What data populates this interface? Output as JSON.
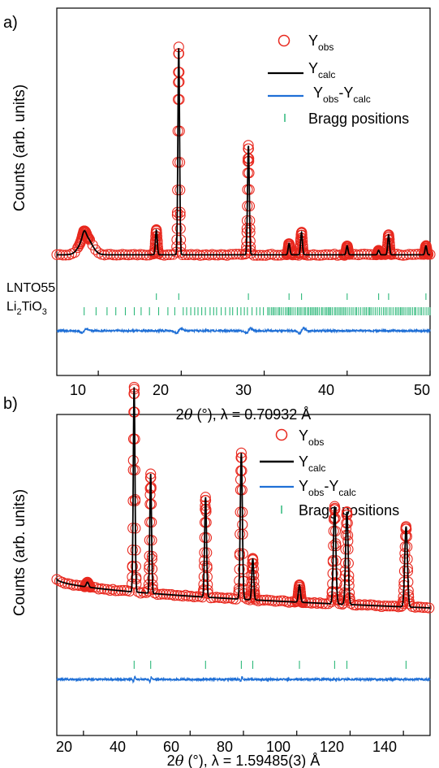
{
  "chart_data": [
    {
      "type": "scatter",
      "panel_label": "a)",
      "title": "",
      "xlabel_prefix": "2",
      "xlabel_theta": "θ",
      "xlabel_rest": " (°), λ = 0.70932 Å",
      "ylabel": "Counts (arb. units)",
      "xlim": [
        5,
        50
      ],
      "xticks": [
        "10",
        "20",
        "30",
        "40",
        "50"
      ],
      "legend_position": "top-right",
      "legend": {
        "obs_main": "Y",
        "obs_sub": "obs",
        "calc_main": "Y",
        "calc_sub": "calc",
        "diff_a": "Y",
        "diff_a_sub": "obs",
        "diff_dash": "-",
        "diff_b": "Y",
        "diff_b_sub": "calc",
        "bragg": "Bragg positions"
      },
      "phase_labels": [
        {
          "text": "LNTO55"
        },
        {
          "main": "Li",
          "sub1": "2",
          "mid": "TiO",
          "sub2": "3"
        }
      ],
      "background_level": 0.06,
      "low_angle_hump": {
        "x": 8.5,
        "height": 0.08,
        "width": 1.0
      },
      "peaks": [
        {
          "x": 8.3,
          "height": 0.03,
          "width": 0.3
        },
        {
          "x": 17.0,
          "height": 0.11,
          "width": 0.15
        },
        {
          "x": 19.7,
          "height": 0.93,
          "width": 0.14
        },
        {
          "x": 28.1,
          "height": 0.49,
          "width": 0.15
        },
        {
          "x": 33.0,
          "height": 0.05,
          "width": 0.15
        },
        {
          "x": 34.5,
          "height": 0.1,
          "width": 0.15
        },
        {
          "x": 40.0,
          "height": 0.04,
          "width": 0.15
        },
        {
          "x": 43.8,
          "height": 0.02,
          "width": 0.15
        },
        {
          "x": 45.0,
          "height": 0.09,
          "width": 0.15
        },
        {
          "x": 49.5,
          "height": 0.04,
          "width": 0.15
        }
      ],
      "bragg_lnto55": [
        17.0,
        19.7,
        28.1,
        33.0,
        34.5,
        40.0,
        43.8,
        45.0,
        49.5
      ],
      "bragg_li2tio3_range": [
        8.3,
        50
      ],
      "diff_features": [
        8.3,
        19.7,
        28.1,
        34.5
      ],
      "colors": {
        "obs": "#e8281e",
        "calc": "#000000",
        "diff": "#1f6fd6",
        "bragg": "#2db87a"
      }
    },
    {
      "type": "scatter",
      "panel_label": "b)",
      "title": "",
      "xlabel_prefix": "2",
      "xlabel_theta": "θ",
      "xlabel_rest": " (°), λ = 1.59485(3) Å",
      "ylabel": "Counts (arb. units)",
      "xlim": [
        10,
        150
      ],
      "xticks": [
        "20",
        "40",
        "60",
        "80",
        "100",
        "120",
        "140"
      ],
      "legend_position": "top-right",
      "legend": {
        "obs_main": "Y",
        "obs_sub": "obs",
        "calc_main": "Y",
        "calc_sub": "calc",
        "diff_a": "Y",
        "diff_a_sub": "obs",
        "diff_dash": "-",
        "diff_b": "Y",
        "diff_b_sub": "calc",
        "bragg": "Bragg positions"
      },
      "background_start": 0.26,
      "background_end": 0.14,
      "peaks": [
        {
          "x": 21.5,
          "height": 0.02,
          "width": 0.6
        },
        {
          "x": 39.0,
          "height": 0.84,
          "width": 0.45
        },
        {
          "x": 45.2,
          "height": 0.49,
          "width": 0.45
        },
        {
          "x": 65.8,
          "height": 0.41,
          "width": 0.5
        },
        {
          "x": 79.2,
          "height": 0.6,
          "width": 0.55
        },
        {
          "x": 83.5,
          "height": 0.17,
          "width": 0.5
        },
        {
          "x": 101.0,
          "height": 0.07,
          "width": 0.55
        },
        {
          "x": 114.2,
          "height": 0.4,
          "width": 0.65
        },
        {
          "x": 118.8,
          "height": 0.38,
          "width": 0.65
        },
        {
          "x": 141.0,
          "height": 0.33,
          "width": 0.7
        }
      ],
      "bragg_positions": [
        39.0,
        45.2,
        65.8,
        79.2,
        83.5,
        101.0,
        114.2,
        118.8,
        141.0
      ],
      "diff_features": [
        39.0,
        45.2,
        79.2
      ],
      "colors": {
        "obs": "#e8281e",
        "calc": "#000000",
        "diff": "#1f6fd6",
        "bragg": "#2db87a"
      }
    }
  ]
}
